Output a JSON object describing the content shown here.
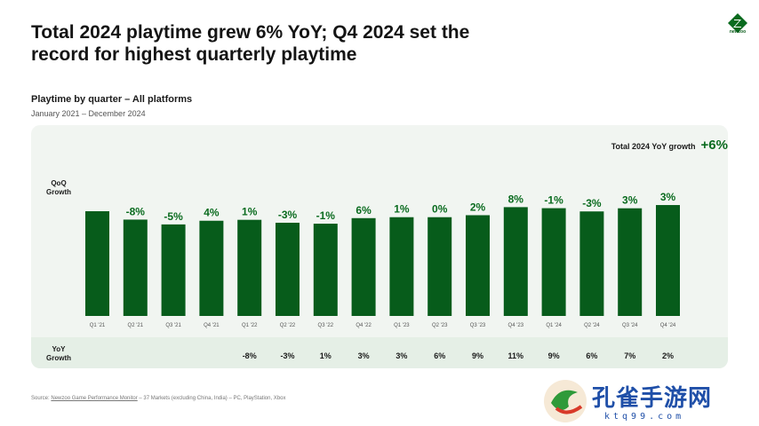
{
  "headline": "Total 2024 playtime grew 6% YoY; Q4 2024 set the record for highest quarterly playtime",
  "logo": {
    "text": "newzoo"
  },
  "total_yoy": {
    "label": "Total 2024 YoY growth",
    "value": "+6%"
  },
  "row_labels": {
    "qoq": "QoQ Growth",
    "yoy": "YoY Growth"
  },
  "source": {
    "prefix": "Source: ",
    "link_text": "Newzoo Game Performance Monitor",
    "suffix": " – 37 Markets (excluding China, India) – PC, PlayStation, Xbox"
  },
  "watermark": {
    "main": "孔雀手游网",
    "sub": "ktq99.com"
  },
  "colors": {
    "bar": "#075c1b",
    "label": "#0a6b1f",
    "panel": "#f1f5f1",
    "strip": "#e5efe6"
  },
  "chart_data": {
    "type": "bar",
    "title": "Playtime by quarter – All platforms",
    "subtitle": "January 2021 – December 2024",
    "categories": [
      "Q1 '21",
      "Q2 '21",
      "Q3 '21",
      "Q4 '21",
      "Q1 '22",
      "Q2 '22",
      "Q3 '22",
      "Q4 '22",
      "Q1 '23",
      "Q2 '23",
      "Q3 '23",
      "Q4 '23",
      "Q1 '24",
      "Q2 '24",
      "Q3 '24",
      "Q4 '24"
    ],
    "values": [
      100,
      92,
      87.4,
      90.9,
      91.8,
      89.0,
      88.1,
      93.4,
      94.3,
      94.3,
      96.2,
      103.9,
      102.9,
      99.8,
      102.8,
      105.9
    ],
    "qoq_labels": [
      "",
      "-8%",
      "-5%",
      "4%",
      "1%",
      "-3%",
      "-1%",
      "6%",
      "1%",
      "0%",
      "2%",
      "8%",
      "-1%",
      "-3%",
      "3%",
      "3%"
    ],
    "yoy_labels": [
      "",
      "",
      "",
      "",
      "-8%",
      "-3%",
      "1%",
      "3%",
      "3%",
      "6%",
      "9%",
      "11%",
      "9%",
      "6%",
      "7%",
      "2%"
    ],
    "ylim": [
      0,
      110
    ],
    "grid": false,
    "legend": "none"
  }
}
